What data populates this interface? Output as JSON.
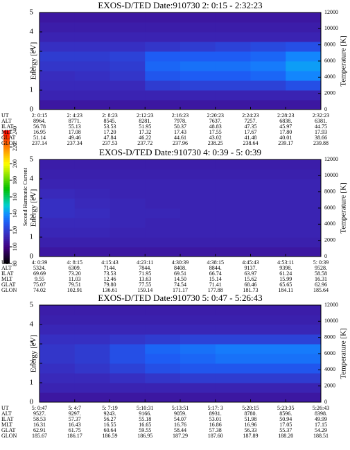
{
  "colorbar": {
    "label": "Second Harmonic Current",
    "lim": [
      80,
      240
    ],
    "ticks": [
      80,
      100,
      120,
      140,
      160,
      180,
      200,
      220,
      240
    ]
  },
  "chart_data": [
    {
      "type": "heatmap",
      "title": "EXOS-D/TED   Date:910730  2: 0:15 - 2:32:23",
      "ylabel": "Energy [eV]",
      "y2label": "Temperature [K]",
      "ylim": [
        0,
        5
      ],
      "yticks": [
        0,
        1,
        2,
        3,
        4,
        5
      ],
      "y2lim": [
        0,
        12000
      ],
      "y2ticks": [
        0,
        2000,
        4000,
        6000,
        8000,
        10000,
        12000
      ],
      "x": [
        "2: 0:15",
        "2: 4:23",
        "2: 8:23",
        "2:12:23",
        "2:16:23",
        "2:20:23",
        "2:24:23",
        "2:28:23",
        "2:32:23"
      ],
      "table": {
        "labels": [
          "UT",
          "ALT",
          "ILAT",
          "MLT",
          "GLAT",
          "GLON"
        ],
        "rows": [
          [
            "8964.",
            "8771.",
            "8545.",
            "8281.",
            "7978.",
            "7637.",
            "7257.",
            "6838.",
            "6381."
          ],
          [
            "56.78",
            "55.13",
            "53.53",
            "51.95",
            "50.37",
            "48.83",
            "47.35",
            "45.97",
            "44.75"
          ],
          [
            "16.95",
            "17.08",
            "17.20",
            "17.32",
            "17.43",
            "17.55",
            "17.67",
            "17.80",
            "17.93"
          ],
          [
            "51.14",
            "49.46",
            "47.84",
            "46.22",
            "44.61",
            "43.02",
            "41.48",
            "40.01",
            "38.66"
          ],
          [
            "237.14",
            "237.34",
            "237.53",
            "237.72",
            "237.96",
            "238.25",
            "238.64",
            "239.17",
            "239.88"
          ]
        ]
      },
      "values": [
        [
          108,
          108,
          108,
          108,
          108,
          108,
          108,
          108
        ],
        [
          112,
          112,
          112,
          112,
          112,
          112,
          112,
          112
        ],
        [
          114,
          114,
          114,
          120,
          122,
          122,
          122,
          126
        ],
        [
          115,
          116,
          118,
          128,
          130,
          130,
          132,
          138
        ],
        [
          118,
          118,
          120,
          132,
          134,
          134,
          136,
          142
        ],
        [
          120,
          120,
          122,
          130,
          130,
          130,
          132,
          138
        ],
        [
          116,
          116,
          116,
          118,
          120,
          122,
          124,
          126
        ],
        [
          112,
          112,
          112,
          112,
          112,
          112,
          112,
          112
        ],
        [
          110,
          110,
          110,
          110,
          110,
          110,
          110,
          110
        ],
        [
          108,
          108,
          108,
          108,
          108,
          108,
          108,
          108
        ]
      ]
    },
    {
      "type": "heatmap",
      "title": "EXOS-D/TED   Date:910730  4: 0:39 - 5: 0:39",
      "ylabel": "Energy [eV]",
      "y2label": "Temperature [K]",
      "ylim": [
        0,
        5
      ],
      "yticks": [
        0,
        1,
        2,
        3,
        4,
        5
      ],
      "y2lim": [
        0,
        12000
      ],
      "y2ticks": [
        0,
        2000,
        4000,
        6000,
        8000,
        10000,
        12000
      ],
      "x": [
        "4: 0:39",
        "4: 8:15",
        "4:15:43",
        "4:23:11",
        "4:30:39",
        "4:38:15",
        "4:45:43",
        "4:53:11",
        "5: 0:39"
      ],
      "table": {
        "labels": [
          "UT",
          "ALT",
          "ILAT",
          "MLT",
          "GLAT",
          "GLON"
        ],
        "rows": [
          [
            "5324.",
            "6309.",
            "7144.",
            "7844.",
            "8408.",
            "8844.",
            "9137.",
            "9398.",
            "9528."
          ],
          [
            "69.69",
            "73.20",
            "73.53",
            "71.95",
            "69.51",
            "66.74",
            "63.97",
            "61.24",
            "58.58"
          ],
          [
            "9.55",
            "11.03",
            "12.46",
            "13.63",
            "14.50",
            "15.14",
            "15.62",
            "15.99",
            "16.31"
          ],
          [
            "75.07",
            "79.51",
            "79.80",
            "77.55",
            "74.54",
            "71.41",
            "68.46",
            "65.65",
            "62.96"
          ],
          [
            "74.02",
            "102.91",
            "136.61",
            "159.14",
            "171.17",
            "177.88",
            "181.73",
            "184.11",
            "185.64"
          ]
        ]
      },
      "values": [
        [
          108,
          108,
          108,
          108,
          108,
          108,
          108,
          108
        ],
        [
          111,
          111,
          111,
          111,
          111,
          111,
          111,
          111
        ],
        [
          113,
          113,
          112,
          112,
          112,
          112,
          112,
          112
        ],
        [
          114,
          114,
          113,
          112,
          112,
          112,
          112,
          112
        ],
        [
          116,
          115,
          113,
          113,
          112,
          112,
          112,
          112
        ],
        [
          116,
          114,
          113,
          112,
          112,
          112,
          112,
          112
        ],
        [
          114,
          113,
          112,
          112,
          112,
          112,
          112,
          112
        ],
        [
          112,
          112,
          112,
          112,
          112,
          112,
          112,
          112
        ],
        [
          111,
          111,
          111,
          111,
          111,
          111,
          111,
          111
        ],
        [
          110,
          110,
          110,
          110,
          110,
          110,
          110,
          110
        ]
      ]
    },
    {
      "type": "heatmap",
      "title": "EXOS-D/TED   Date:910730  5: 0:47 - 5:26:43",
      "ylabel": "Energy [eV]",
      "y2label": "Temperature [K]",
      "ylim": [
        0,
        5
      ],
      "yticks": [
        0,
        1,
        2,
        3,
        4,
        5
      ],
      "y2lim": [
        0,
        12000
      ],
      "y2ticks": [
        0,
        2000,
        4000,
        6000,
        8000,
        10000,
        12000
      ],
      "x": [
        "5: 0:47",
        "5: 4:7",
        "5: 7:19",
        "5:10:31",
        "5:13:51",
        "5:17: 3",
        "5:20:15",
        "5:23:35",
        "5:26:43"
      ],
      "table": {
        "labels": [
          "UT",
          "ALT",
          "ILAT",
          "MLT",
          "GLAT",
          "GLON"
        ],
        "rows": [
          [
            "9527.",
            "9297.",
            "9243.",
            "9166.",
            "9059.",
            "8931.",
            "8780.",
            "8596.",
            "8398."
          ],
          [
            "58.53",
            "57.37",
            "56.27",
            "55.18",
            "54.07",
            "53.01",
            "51.98",
            "50.94",
            "49.99"
          ],
          [
            "16.31",
            "16.43",
            "16.55",
            "16.65",
            "16.76",
            "16.86",
            "16.96",
            "17.05",
            "17.15"
          ],
          [
            "62.91",
            "61.75",
            "60.64",
            "59.55",
            "58.44",
            "57.38",
            "56.33",
            "55.37",
            "54.29"
          ],
          [
            "185.67",
            "186.17",
            "186.59",
            "186.95",
            "187.29",
            "187.60",
            "187.89",
            "188.20",
            "188.51"
          ]
        ]
      },
      "values": [
        [
          108,
          108,
          108,
          108,
          108,
          108,
          108,
          108
        ],
        [
          112,
          112,
          112,
          112,
          112,
          112,
          112,
          112
        ],
        [
          114,
          114,
          116,
          118,
          120,
          120,
          120,
          120
        ],
        [
          116,
          118,
          122,
          126,
          128,
          128,
          128,
          128
        ],
        [
          118,
          120,
          126,
          130,
          132,
          134,
          134,
          134
        ],
        [
          118,
          120,
          126,
          132,
          134,
          136,
          136,
          136
        ],
        [
          116,
          116,
          118,
          120,
          122,
          122,
          122,
          122
        ],
        [
          113,
          113,
          113,
          113,
          113,
          113,
          113,
          113
        ],
        [
          111,
          111,
          111,
          111,
          111,
          111,
          111,
          111
        ],
        [
          110,
          110,
          110,
          110,
          110,
          110,
          110,
          110
        ]
      ]
    }
  ]
}
